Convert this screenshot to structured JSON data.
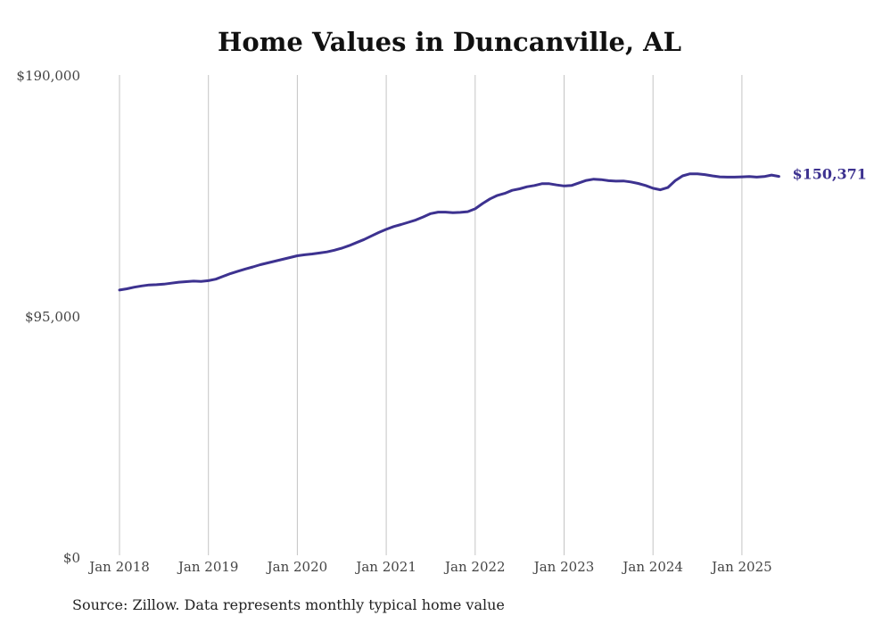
{
  "chart_data": {
    "type": "line",
    "title": "Home Values in Duncanville, AL",
    "xlabel": "",
    "ylabel": "",
    "ylim": [
      0,
      190000
    ],
    "y_ticks": [
      0,
      95000,
      190000
    ],
    "y_tick_labels": [
      "$0",
      "$95,000",
      "$190,000"
    ],
    "x_ticks": [
      "2018-01",
      "2019-01",
      "2020-01",
      "2021-01",
      "2022-01",
      "2023-01",
      "2024-01",
      "2025-01"
    ],
    "x_tick_labels": [
      "Jan 2018",
      "Jan 2019",
      "Jan 2020",
      "Jan 2021",
      "Jan 2022",
      "Jan 2023",
      "Jan 2024",
      "Jan 2025"
    ],
    "grid": "vertical",
    "line_color": "#3d3290",
    "end_label": "$150,371",
    "source": "Source: Zillow. Data represents monthly typical home value",
    "series": [
      {
        "points": [
          [
            "2018-01",
            105600
          ],
          [
            "2018-02",
            106100
          ],
          [
            "2018-03",
            106700
          ],
          [
            "2018-04",
            107200
          ],
          [
            "2018-05",
            107600
          ],
          [
            "2018-06",
            107700
          ],
          [
            "2018-07",
            107900
          ],
          [
            "2018-08",
            108300
          ],
          [
            "2018-09",
            108700
          ],
          [
            "2018-10",
            108900
          ],
          [
            "2018-11",
            109100
          ],
          [
            "2018-12",
            109000
          ],
          [
            "2019-01",
            109300
          ],
          [
            "2019-02",
            109900
          ],
          [
            "2019-03",
            111000
          ],
          [
            "2019-04",
            112100
          ],
          [
            "2019-05",
            113000
          ],
          [
            "2019-06",
            113900
          ],
          [
            "2019-07",
            114700
          ],
          [
            "2019-08",
            115600
          ],
          [
            "2019-09",
            116300
          ],
          [
            "2019-10",
            117000
          ],
          [
            "2019-11",
            117700
          ],
          [
            "2019-12",
            118400
          ],
          [
            "2020-01",
            119100
          ],
          [
            "2020-02",
            119500
          ],
          [
            "2020-03",
            119800
          ],
          [
            "2020-04",
            120200
          ],
          [
            "2020-05",
            120600
          ],
          [
            "2020-06",
            121300
          ],
          [
            "2020-07",
            122100
          ],
          [
            "2020-08",
            123100
          ],
          [
            "2020-09",
            124300
          ],
          [
            "2020-10",
            125500
          ],
          [
            "2020-11",
            126900
          ],
          [
            "2020-12",
            128300
          ],
          [
            "2021-01",
            129500
          ],
          [
            "2021-02",
            130600
          ],
          [
            "2021-03",
            131400
          ],
          [
            "2021-04",
            132300
          ],
          [
            "2021-05",
            133200
          ],
          [
            "2021-06",
            134400
          ],
          [
            "2021-07",
            135700
          ],
          [
            "2021-08",
            136300
          ],
          [
            "2021-09",
            136300
          ],
          [
            "2021-10",
            136100
          ],
          [
            "2021-11",
            136200
          ],
          [
            "2021-12",
            136500
          ],
          [
            "2022-01",
            137600
          ],
          [
            "2022-02",
            139700
          ],
          [
            "2022-03",
            141500
          ],
          [
            "2022-04",
            142900
          ],
          [
            "2022-05",
            143700
          ],
          [
            "2022-06",
            144900
          ],
          [
            "2022-07",
            145500
          ],
          [
            "2022-08",
            146300
          ],
          [
            "2022-09",
            146800
          ],
          [
            "2022-10",
            147500
          ],
          [
            "2022-11",
            147500
          ],
          [
            "2022-12",
            147000
          ],
          [
            "2023-01",
            146600
          ],
          [
            "2023-02",
            146800
          ],
          [
            "2023-03",
            147800
          ],
          [
            "2023-04",
            148800
          ],
          [
            "2023-05",
            149300
          ],
          [
            "2023-06",
            149100
          ],
          [
            "2023-07",
            148700
          ],
          [
            "2023-08",
            148500
          ],
          [
            "2023-09",
            148600
          ],
          [
            "2023-10",
            148200
          ],
          [
            "2023-11",
            147600
          ],
          [
            "2023-12",
            146800
          ],
          [
            "2024-01",
            145700
          ],
          [
            "2024-02",
            145100
          ],
          [
            "2024-03",
            146000
          ],
          [
            "2024-04",
            148700
          ],
          [
            "2024-05",
            150600
          ],
          [
            "2024-06",
            151400
          ],
          [
            "2024-07",
            151400
          ],
          [
            "2024-08",
            151100
          ],
          [
            "2024-09",
            150600
          ],
          [
            "2024-10",
            150200
          ],
          [
            "2024-11",
            150100
          ],
          [
            "2024-12",
            150100
          ],
          [
            "2025-01",
            150200
          ],
          [
            "2025-02",
            150300
          ],
          [
            "2025-03",
            150100
          ],
          [
            "2025-04",
            150300
          ],
          [
            "2025-05",
            150900
          ],
          [
            "2025-06",
            150371
          ]
        ]
      }
    ]
  }
}
